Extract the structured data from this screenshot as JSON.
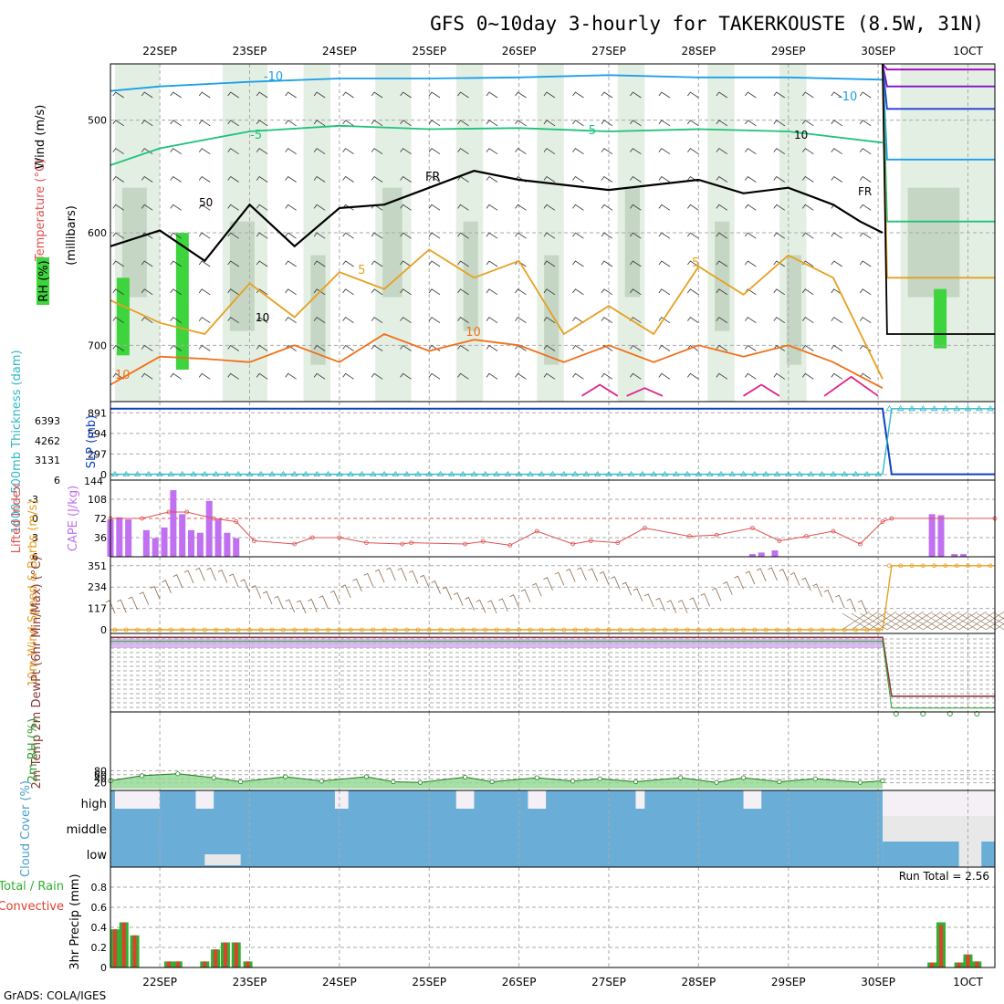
{
  "chart_data": {
    "type": "meteogram",
    "title": "GFS 0~10day 3-hourly for TAKERKOUSTE (8.5W, 31N)",
    "credit": "GrADS: COLA/IGES",
    "x_ticks": [
      "22SEP",
      "23SEP",
      "24SEP",
      "25SEP",
      "26SEP",
      "27SEP",
      "28SEP",
      "29SEP",
      "30SEP",
      "1OCT"
    ],
    "x_tick_positions_days": [
      1,
      2,
      3,
      4,
      5,
      6,
      7,
      8,
      9,
      10
    ],
    "x_range_days": [
      0.45,
      10.3
    ],
    "panels": {
      "upper_air": {
        "ylabel": "(millibars)",
        "legend": [
          "RH (%)",
          "Temperature (°C)",
          "Wind (m/s)"
        ],
        "y_range": [
          450,
          750
        ],
        "y_ticks": [
          500,
          600,
          700
        ],
        "rh_label": "50",
        "isotherm_labels": [
          "-10",
          "-5",
          "FR",
          "5",
          "10"
        ],
        "contour_label_10": "10",
        "isotherms": [
          {
            "label": "-10",
            "color": "#1a9fe8",
            "t": [
              0.45,
              1,
              2,
              3,
              4,
              5,
              6,
              7,
              8,
              9.05
            ],
            "p": [
              474,
              470,
              466,
              463,
              463,
              462,
              460,
              462,
              462,
              464
            ]
          },
          {
            "label": "-5",
            "color": "#1ec27a",
            "t": [
              0.45,
              1,
              2,
              3,
              4,
              5,
              6,
              7,
              8,
              9.05
            ],
            "p": [
              540,
              525,
              510,
              505,
              508,
              507,
              510,
              508,
              510,
              520
            ]
          },
          {
            "label": "FR",
            "color": "#000000",
            "t": [
              0.45,
              1,
              1.5,
              2,
              2.5,
              3,
              3.5,
              4,
              4.5,
              5,
              6,
              7,
              7.5,
              8,
              8.5,
              8.8,
              9.05
            ],
            "p": [
              612,
              598,
              625,
              575,
              612,
              578,
              575,
              560,
              545,
              553,
              562,
              553,
              565,
              560,
              575,
              590,
              600
            ]
          },
          {
            "label": "5",
            "color": "#e8a020",
            "t": [
              0.45,
              1,
              1.5,
              2,
              2.5,
              3,
              3.5,
              4,
              4.5,
              5,
              5.5,
              6,
              6.5,
              7,
              7.5,
              8,
              8.5,
              9.05
            ],
            "p": [
              660,
              680,
              690,
              645,
              675,
              635,
              650,
              615,
              640,
              625,
              690,
              665,
              690,
              630,
              655,
              620,
              640,
              730
            ]
          },
          {
            "label": "10",
            "color": "#f07018",
            "t": [
              0.45,
              1,
              1.5,
              2,
              2.5,
              3,
              3.5,
              4,
              4.5,
              5,
              5.5,
              6,
              6.5,
              7,
              7.5,
              8,
              8.5,
              9.05
            ],
            "p": [
              735,
              710,
              712,
              715,
              700,
              715,
              690,
              705,
              695,
              700,
              715,
              700,
              715,
              700,
              710,
              700,
              715,
              738
            ]
          }
        ],
        "right_segment_isotherms_p": [
          455,
          470,
          490,
          535,
          590,
          640,
          690
        ],
        "right_segment_colors": [
          "#a000c0",
          "#7a10c8",
          "#2040d0",
          "#1a9fe8",
          "#1ec27a",
          "#e8a020",
          "#000000"
        ]
      },
      "slp_thickness": {
        "ylabel_left": "1000~500mb Thickness (dam)",
        "ylabel_right": "SLP (mb)",
        "y_ticks_left": [
          "6393",
          "4262",
          "3131",
          "6"
        ],
        "y_ticks_right": [
          "891",
          "594",
          "297",
          "0"
        ],
        "left_extra_tick": "144",
        "slp_t": [
          0.45,
          9.05,
          9.15,
          10.3
        ],
        "slp_v": [
          950,
          950,
          5,
          5
        ],
        "thickness_t": [
          0.45,
          9.05,
          9.15,
          10.3
        ],
        "thickness_v": [
          5,
          5,
          950,
          950
        ]
      },
      "instability": {
        "ylabel_left": "Lifted Index",
        "ylabel_right": "CAPE (J/kg)",
        "li_ticks": [
          "-3",
          "0",
          "3",
          "6"
        ],
        "cape_ticks": [
          "108",
          "72",
          "36"
        ],
        "cape_t": [
          0.45,
          0.55,
          0.65,
          0.85,
          0.95,
          1.05,
          1.15,
          1.25,
          1.35,
          1.45,
          1.55,
          1.65,
          1.75,
          1.85,
          7.6,
          7.7,
          7.85,
          9.6,
          9.7,
          9.85,
          9.95
        ],
        "cape_v": [
          70,
          74,
          70,
          50,
          35,
          55,
          125,
          80,
          50,
          45,
          105,
          70,
          45,
          35,
          5,
          8,
          12,
          80,
          78,
          5,
          5
        ],
        "li_t": [
          0.45,
          0.8,
          1.1,
          1.3,
          1.6,
          1.85,
          2.05,
          2.5,
          2.7,
          3,
          3.3,
          3.7,
          3.8,
          4.4,
          4.6,
          4.9,
          5.2,
          5.6,
          5.8,
          6.1,
          6.4,
          6.9,
          7.2,
          7.6,
          7.9,
          8.2,
          8.5,
          8.8,
          9.05,
          9.15,
          10.3
        ],
        "li_v": [
          0,
          0,
          -1,
          -1,
          0,
          0.5,
          3.5,
          4,
          3,
          3,
          3.8,
          4,
          3.8,
          4,
          3.6,
          4.2,
          2,
          4,
          3.5,
          3.8,
          1.5,
          2.8,
          2.6,
          1.5,
          3.5,
          2.8,
          2,
          4,
          0.5,
          0,
          0
        ]
      },
      "wind10m": {
        "ylabel": "10m Wind Speed & Barbs (m/s)",
        "y_ticks": [
          "351",
          "234",
          "117",
          "0"
        ],
        "speed_t": [
          0.45,
          9.05,
          9.15,
          10.3
        ],
        "speed_v": [
          0,
          0,
          351,
          351
        ]
      },
      "temp2m": {
        "ylabel": "2m Temp 2m DewPt (6hr Min/Max) (°C)",
        "drop_t": [
          0.45,
          9.05,
          9.15,
          10.3
        ],
        "drop_v": [
          0.95,
          0.95,
          0.2,
          0.2
        ]
      },
      "rh2m": {
        "ylabel": "2m RH (%)",
        "y_ticks": [
          "80",
          "60",
          "40",
          "20"
        ],
        "rh_t": [
          0.45,
          0.8,
          1.2,
          1.6,
          1.9,
          2.4,
          2.8,
          3.3,
          3.6,
          3.9,
          4.4,
          4.7,
          5.2,
          5.6,
          5.9,
          6.3,
          6.8,
          7.2,
          7.5,
          7.9,
          8.3,
          8.8,
          9.05
        ],
        "rh_v": [
          30,
          55,
          65,
          45,
          25,
          50,
          28,
          50,
          25,
          22,
          48,
          25,
          45,
          28,
          40,
          25,
          45,
          22,
          45,
          25,
          40,
          22,
          30
        ]
      },
      "cloud": {
        "ylabel": "Cloud Cover (%)",
        "levels": [
          "high",
          "middle",
          "low"
        ]
      },
      "precip": {
        "ylabel": "3hr Precip (mm)",
        "legend": [
          "Total / Rain",
          "Convective"
        ],
        "run_total": "Run Total = 2.56",
        "y_ticks": [
          "0.8",
          "0.6",
          "0.4",
          "0.2",
          "0"
        ],
        "t": [
          0.5,
          0.6,
          0.72,
          1.1,
          1.2,
          1.5,
          1.62,
          1.73,
          1.85,
          1.98,
          2.45,
          2.57,
          9.6,
          9.7,
          9.9,
          10.0,
          10.1
        ],
        "total": [
          0.38,
          0.45,
          0.32,
          0.06,
          0.06,
          0.06,
          0.18,
          0.25,
          0.25,
          0.06,
          0,
          0,
          0.05,
          0.45,
          0.05,
          0.13,
          0.06
        ],
        "conv": [
          0.38,
          0.45,
          0.32,
          0.06,
          0.06,
          0.06,
          0.18,
          0.25,
          0.25,
          0.06,
          0,
          0,
          0.05,
          0.42,
          0.05,
          0.13,
          0.06
        ]
      }
    }
  }
}
